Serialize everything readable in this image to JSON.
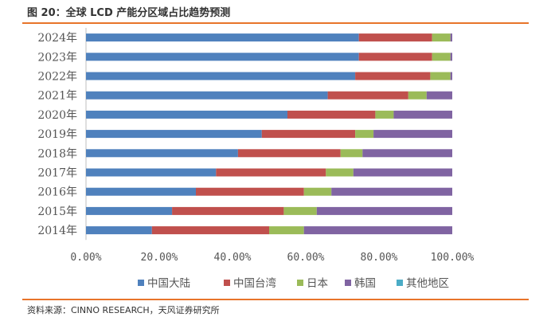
{
  "header": {
    "title": "图 20：全球 LCD 产能分区域占比趋势预测"
  },
  "footer": {
    "source": "资料来源：CINNO RESEARCH，天风证券研究所"
  },
  "chart_data": {
    "type": "bar",
    "orientation": "horizontal",
    "stacked": true,
    "title": "全球 LCD 产能分区域占比趋势预测",
    "categories": [
      "2024年",
      "2023年",
      "2022年",
      "2021年",
      "2020年",
      "2019年",
      "2018年",
      "2017年",
      "2016年",
      "2015年",
      "2014年"
    ],
    "series": [
      {
        "name": "中国大陆",
        "color": "#4f81bd",
        "values": [
          74.5,
          74.5,
          73.5,
          66.0,
          55.0,
          48.0,
          41.5,
          35.5,
          30.0,
          23.5,
          18.0
        ]
      },
      {
        "name": "中国台湾",
        "color": "#c0504d",
        "values": [
          20.0,
          20.0,
          20.5,
          22.0,
          24.0,
          25.5,
          28.0,
          30.0,
          29.5,
          30.5,
          32.0
        ]
      },
      {
        "name": "日本",
        "color": "#9bbb59",
        "values": [
          5.0,
          5.0,
          5.5,
          5.0,
          5.0,
          5.0,
          6.0,
          7.5,
          7.5,
          9.0,
          9.5
        ]
      },
      {
        "name": "韩国",
        "color": "#8064a2",
        "values": [
          0.5,
          0.5,
          0.5,
          7.0,
          16.0,
          21.5,
          24.5,
          27.0,
          33.0,
          37.0,
          40.5
        ]
      },
      {
        "name": "其他地区",
        "color": "#4bacc6",
        "values": [
          0,
          0,
          0,
          0,
          0,
          0,
          0,
          0,
          0,
          0,
          0
        ]
      }
    ],
    "xlim": [
      0,
      100
    ],
    "xticks": [
      "0.00%",
      "20.00%",
      "40.00%",
      "60.00%",
      "80.00%",
      "100.00%"
    ],
    "legend_position": "bottom"
  }
}
